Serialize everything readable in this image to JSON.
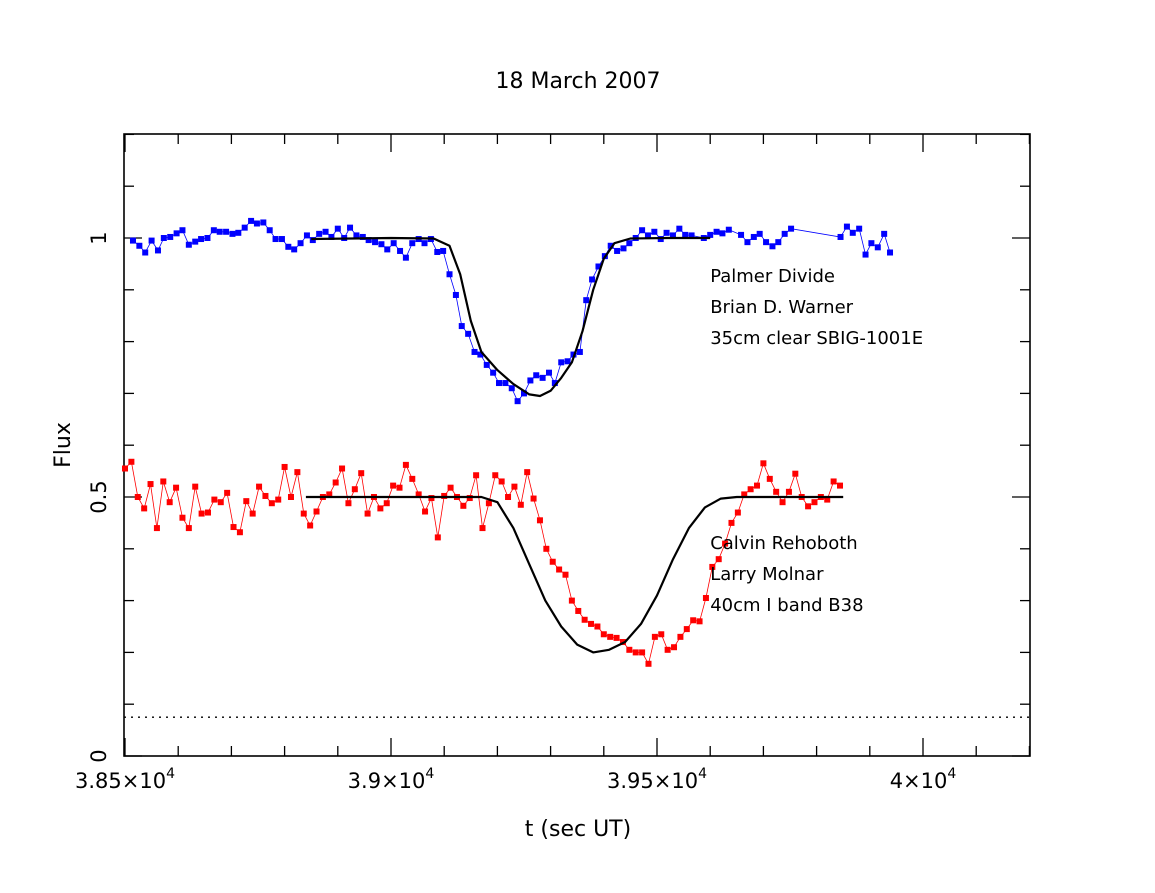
{
  "chart_data": {
    "type": "scatter",
    "title": "18 March 2007",
    "xlabel": "t (sec UT)",
    "ylabel": "Flux",
    "xlim": [
      38500,
      40200
    ],
    "ylim": [
      0,
      1.2
    ],
    "grid": false,
    "x_ticks": [
      {
        "value": 38500,
        "mantissa": "3.85×10",
        "exp": "4"
      },
      {
        "value": 39000,
        "mantissa": "3.9×10",
        "exp": "4"
      },
      {
        "value": 39500,
        "mantissa": "3.95×10",
        "exp": "4"
      },
      {
        "value": 40000,
        "mantissa": "4×10",
        "exp": "4"
      }
    ],
    "y_ticks": [
      {
        "value": 0,
        "label": "0"
      },
      {
        "value": 0.5,
        "label": "0.5"
      },
      {
        "value": 1,
        "label": "1"
      }
    ],
    "reference_line": {
      "y": 0.075,
      "style": "dotted"
    },
    "series": [
      {
        "color": "#0000ff",
        "annotations": [
          "Palmer Divide",
          "Brian D. Warner",
          "35cm clear SBIG-1001E"
        ],
        "label_anchor": {
          "x": 39600,
          "y": 0.915
        },
        "points": [
          [
            38515,
            0.995
          ],
          [
            38527,
            0.985
          ],
          [
            38538,
            0.972
          ],
          [
            38550,
            0.995
          ],
          [
            38562,
            0.976
          ],
          [
            38573,
            1.0
          ],
          [
            38585,
            1.002
          ],
          [
            38597,
            1.009
          ],
          [
            38608,
            1.015
          ],
          [
            38620,
            0.987
          ],
          [
            38632,
            0.993
          ],
          [
            38643,
            0.998
          ],
          [
            38655,
            1.0
          ],
          [
            38667,
            1.015
          ],
          [
            38678,
            1.012
          ],
          [
            38690,
            1.012
          ],
          [
            38702,
            1.008
          ],
          [
            38713,
            1.01
          ],
          [
            38725,
            1.02
          ],
          [
            38737,
            1.033
          ],
          [
            38748,
            1.028
          ],
          [
            38760,
            1.03
          ],
          [
            38772,
            1.015
          ],
          [
            38783,
            0.998
          ],
          [
            38795,
            0.998
          ],
          [
            38807,
            0.983
          ],
          [
            38818,
            0.978
          ],
          [
            38830,
            0.99
          ],
          [
            38842,
            1.005
          ],
          [
            38853,
            0.996
          ],
          [
            38865,
            1.008
          ],
          [
            38877,
            1.012
          ],
          [
            38888,
            1.002
          ],
          [
            38900,
            1.018
          ],
          [
            38912,
            1.0
          ],
          [
            38923,
            1.02
          ],
          [
            38935,
            1.005
          ],
          [
            38947,
            1.002
          ],
          [
            38958,
            0.996
          ],
          [
            38970,
            0.992
          ],
          [
            38982,
            0.988
          ],
          [
            38993,
            0.978
          ],
          [
            39005,
            0.99
          ],
          [
            39017,
            0.975
          ],
          [
            39028,
            0.962
          ],
          [
            39040,
            0.99
          ],
          [
            39052,
            0.998
          ],
          [
            39063,
            0.99
          ],
          [
            39075,
            0.998
          ],
          [
            39087,
            0.973
          ],
          [
            39098,
            0.975
          ],
          [
            39110,
            0.93
          ],
          [
            39122,
            0.89
          ],
          [
            39133,
            0.83
          ],
          [
            39145,
            0.815
          ],
          [
            39157,
            0.78
          ],
          [
            39168,
            0.775
          ],
          [
            39180,
            0.755
          ],
          [
            39192,
            0.74
          ],
          [
            39203,
            0.72
          ],
          [
            39215,
            0.72
          ],
          [
            39227,
            0.71
          ],
          [
            39238,
            0.685
          ],
          [
            39250,
            0.7
          ],
          [
            39262,
            0.725
          ],
          [
            39273,
            0.735
          ],
          [
            39285,
            0.73
          ],
          [
            39297,
            0.74
          ],
          [
            39308,
            0.72
          ],
          [
            39320,
            0.76
          ],
          [
            39332,
            0.762
          ],
          [
            39343,
            0.775
          ],
          [
            39355,
            0.78
          ],
          [
            39367,
            0.88
          ],
          [
            39378,
            0.92
          ],
          [
            39390,
            0.945
          ],
          [
            39402,
            0.965
          ],
          [
            39413,
            0.985
          ],
          [
            39425,
            0.975
          ],
          [
            39437,
            0.98
          ],
          [
            39448,
            0.99
          ],
          [
            39460,
            1.0
          ],
          [
            39472,
            1.015
          ],
          [
            39483,
            1.005
          ],
          [
            39495,
            1.012
          ],
          [
            39507,
            0.998
          ],
          [
            39518,
            1.01
          ],
          [
            39530,
            1.005
          ],
          [
            39542,
            1.018
          ],
          [
            39553,
            1.006
          ],
          [
            39565,
            1.005
          ],
          [
            39588,
            1.0
          ],
          [
            39600,
            1.006
          ],
          [
            39612,
            1.012
          ],
          [
            39623,
            1.009
          ],
          [
            39635,
            1.016
          ],
          [
            39658,
            1.006
          ],
          [
            39670,
            0.992
          ],
          [
            39682,
            1.002
          ],
          [
            39693,
            1.008
          ],
          [
            39705,
            0.992
          ],
          [
            39717,
            0.984
          ],
          [
            39728,
            0.992
          ],
          [
            39740,
            1.008
          ],
          [
            39752,
            1.018
          ],
          [
            39845,
            1.002
          ],
          [
            39857,
            1.022
          ],
          [
            39868,
            1.01
          ],
          [
            39880,
            1.018
          ],
          [
            39892,
            0.968
          ],
          [
            39903,
            0.99
          ],
          [
            39915,
            0.982
          ],
          [
            39927,
            1.008
          ],
          [
            39938,
            0.972
          ]
        ]
      },
      {
        "color": "#ff0000",
        "annotations": [
          "Calvin Rehoboth",
          "Larry Molnar",
          "40cm I band B38"
        ],
        "label_anchor": {
          "x": 39600,
          "y": 0.4
        },
        "points": [
          [
            38500,
            0.555
          ],
          [
            38512,
            0.568
          ],
          [
            38524,
            0.5
          ],
          [
            38536,
            0.478
          ],
          [
            38548,
            0.525
          ],
          [
            38560,
            0.44
          ],
          [
            38572,
            0.53
          ],
          [
            38584,
            0.49
          ],
          [
            38596,
            0.518
          ],
          [
            38608,
            0.46
          ],
          [
            38620,
            0.44
          ],
          [
            38632,
            0.52
          ],
          [
            38644,
            0.468
          ],
          [
            38656,
            0.47
          ],
          [
            38668,
            0.495
          ],
          [
            38680,
            0.49
          ],
          [
            38692,
            0.508
          ],
          [
            38704,
            0.442
          ],
          [
            38716,
            0.432
          ],
          [
            38728,
            0.492
          ],
          [
            38740,
            0.468
          ],
          [
            38752,
            0.52
          ],
          [
            38764,
            0.502
          ],
          [
            38776,
            0.488
          ],
          [
            38788,
            0.495
          ],
          [
            38800,
            0.558
          ],
          [
            38812,
            0.5
          ],
          [
            38824,
            0.548
          ],
          [
            38836,
            0.468
          ],
          [
            38848,
            0.445
          ],
          [
            38860,
            0.472
          ],
          [
            38872,
            0.5
          ],
          [
            38884,
            0.505
          ],
          [
            38896,
            0.528
          ],
          [
            38908,
            0.555
          ],
          [
            38920,
            0.488
          ],
          [
            38932,
            0.515
          ],
          [
            38944,
            0.546
          ],
          [
            38956,
            0.468
          ],
          [
            38968,
            0.5
          ],
          [
            38980,
            0.478
          ],
          [
            38992,
            0.488
          ],
          [
            39004,
            0.522
          ],
          [
            39016,
            0.518
          ],
          [
            39028,
            0.562
          ],
          [
            39040,
            0.535
          ],
          [
            39052,
            0.505
          ],
          [
            39064,
            0.472
          ],
          [
            39076,
            0.498
          ],
          [
            39088,
            0.422
          ],
          [
            39100,
            0.502
          ],
          [
            39112,
            0.518
          ],
          [
            39124,
            0.5
          ],
          [
            39136,
            0.483
          ],
          [
            39148,
            0.498
          ],
          [
            39160,
            0.542
          ],
          [
            39172,
            0.44
          ],
          [
            39184,
            0.488
          ],
          [
            39196,
            0.542
          ],
          [
            39208,
            0.53
          ],
          [
            39220,
            0.5
          ],
          [
            39232,
            0.52
          ],
          [
            39244,
            0.485
          ],
          [
            39256,
            0.548
          ],
          [
            39268,
            0.497
          ],
          [
            39280,
            0.455
          ],
          [
            39292,
            0.4
          ],
          [
            39304,
            0.375
          ],
          [
            39316,
            0.36
          ],
          [
            39328,
            0.35
          ],
          [
            39340,
            0.3
          ],
          [
            39352,
            0.28
          ],
          [
            39364,
            0.263
          ],
          [
            39376,
            0.255
          ],
          [
            39388,
            0.25
          ],
          [
            39400,
            0.235
          ],
          [
            39412,
            0.23
          ],
          [
            39424,
            0.228
          ],
          [
            39436,
            0.22
          ],
          [
            39448,
            0.205
          ],
          [
            39460,
            0.2
          ],
          [
            39472,
            0.2
          ],
          [
            39484,
            0.178
          ],
          [
            39496,
            0.23
          ],
          [
            39508,
            0.235
          ],
          [
            39520,
            0.205
          ],
          [
            39532,
            0.21
          ],
          [
            39544,
            0.23
          ],
          [
            39556,
            0.245
          ],
          [
            39568,
            0.262
          ],
          [
            39580,
            0.26
          ],
          [
            39592,
            0.305
          ],
          [
            39604,
            0.365
          ],
          [
            39616,
            0.38
          ],
          [
            39628,
            0.41
          ],
          [
            39640,
            0.45
          ],
          [
            39652,
            0.47
          ],
          [
            39664,
            0.505
          ],
          [
            39676,
            0.515
          ],
          [
            39688,
            0.522
          ],
          [
            39700,
            0.565
          ],
          [
            39712,
            0.535
          ],
          [
            39724,
            0.51
          ],
          [
            39736,
            0.49
          ],
          [
            39748,
            0.51
          ],
          [
            39760,
            0.545
          ],
          [
            39772,
            0.5
          ],
          [
            39784,
            0.482
          ],
          [
            39796,
            0.49
          ],
          [
            39808,
            0.5
          ],
          [
            39820,
            0.495
          ],
          [
            39832,
            0.53
          ],
          [
            39844,
            0.522
          ]
        ]
      }
    ],
    "fits": [
      {
        "color": "#000000",
        "points": [
          [
            38850,
            0.998
          ],
          [
            39000,
            1.0
          ],
          [
            39080,
            0.999
          ],
          [
            39110,
            0.985
          ],
          [
            39130,
            0.93
          ],
          [
            39150,
            0.84
          ],
          [
            39170,
            0.78
          ],
          [
            39200,
            0.745
          ],
          [
            39230,
            0.718
          ],
          [
            39260,
            0.698
          ],
          [
            39280,
            0.695
          ],
          [
            39300,
            0.705
          ],
          [
            39320,
            0.73
          ],
          [
            39340,
            0.76
          ],
          [
            39360,
            0.82
          ],
          [
            39380,
            0.9
          ],
          [
            39400,
            0.96
          ],
          [
            39420,
            0.99
          ],
          [
            39450,
            0.999
          ],
          [
            39520,
            1.0
          ],
          [
            39600,
            1.0
          ]
        ]
      },
      {
        "color": "#000000",
        "points": [
          [
            38840,
            0.5
          ],
          [
            39000,
            0.5
          ],
          [
            39170,
            0.5
          ],
          [
            39200,
            0.49
          ],
          [
            39230,
            0.44
          ],
          [
            39260,
            0.37
          ],
          [
            39290,
            0.3
          ],
          [
            39320,
            0.25
          ],
          [
            39350,
            0.215
          ],
          [
            39380,
            0.2
          ],
          [
            39410,
            0.205
          ],
          [
            39440,
            0.22
          ],
          [
            39470,
            0.255
          ],
          [
            39500,
            0.31
          ],
          [
            39530,
            0.38
          ],
          [
            39560,
            0.44
          ],
          [
            39590,
            0.48
          ],
          [
            39620,
            0.497
          ],
          [
            39650,
            0.5
          ],
          [
            39700,
            0.5
          ],
          [
            39850,
            0.5
          ]
        ]
      }
    ]
  }
}
